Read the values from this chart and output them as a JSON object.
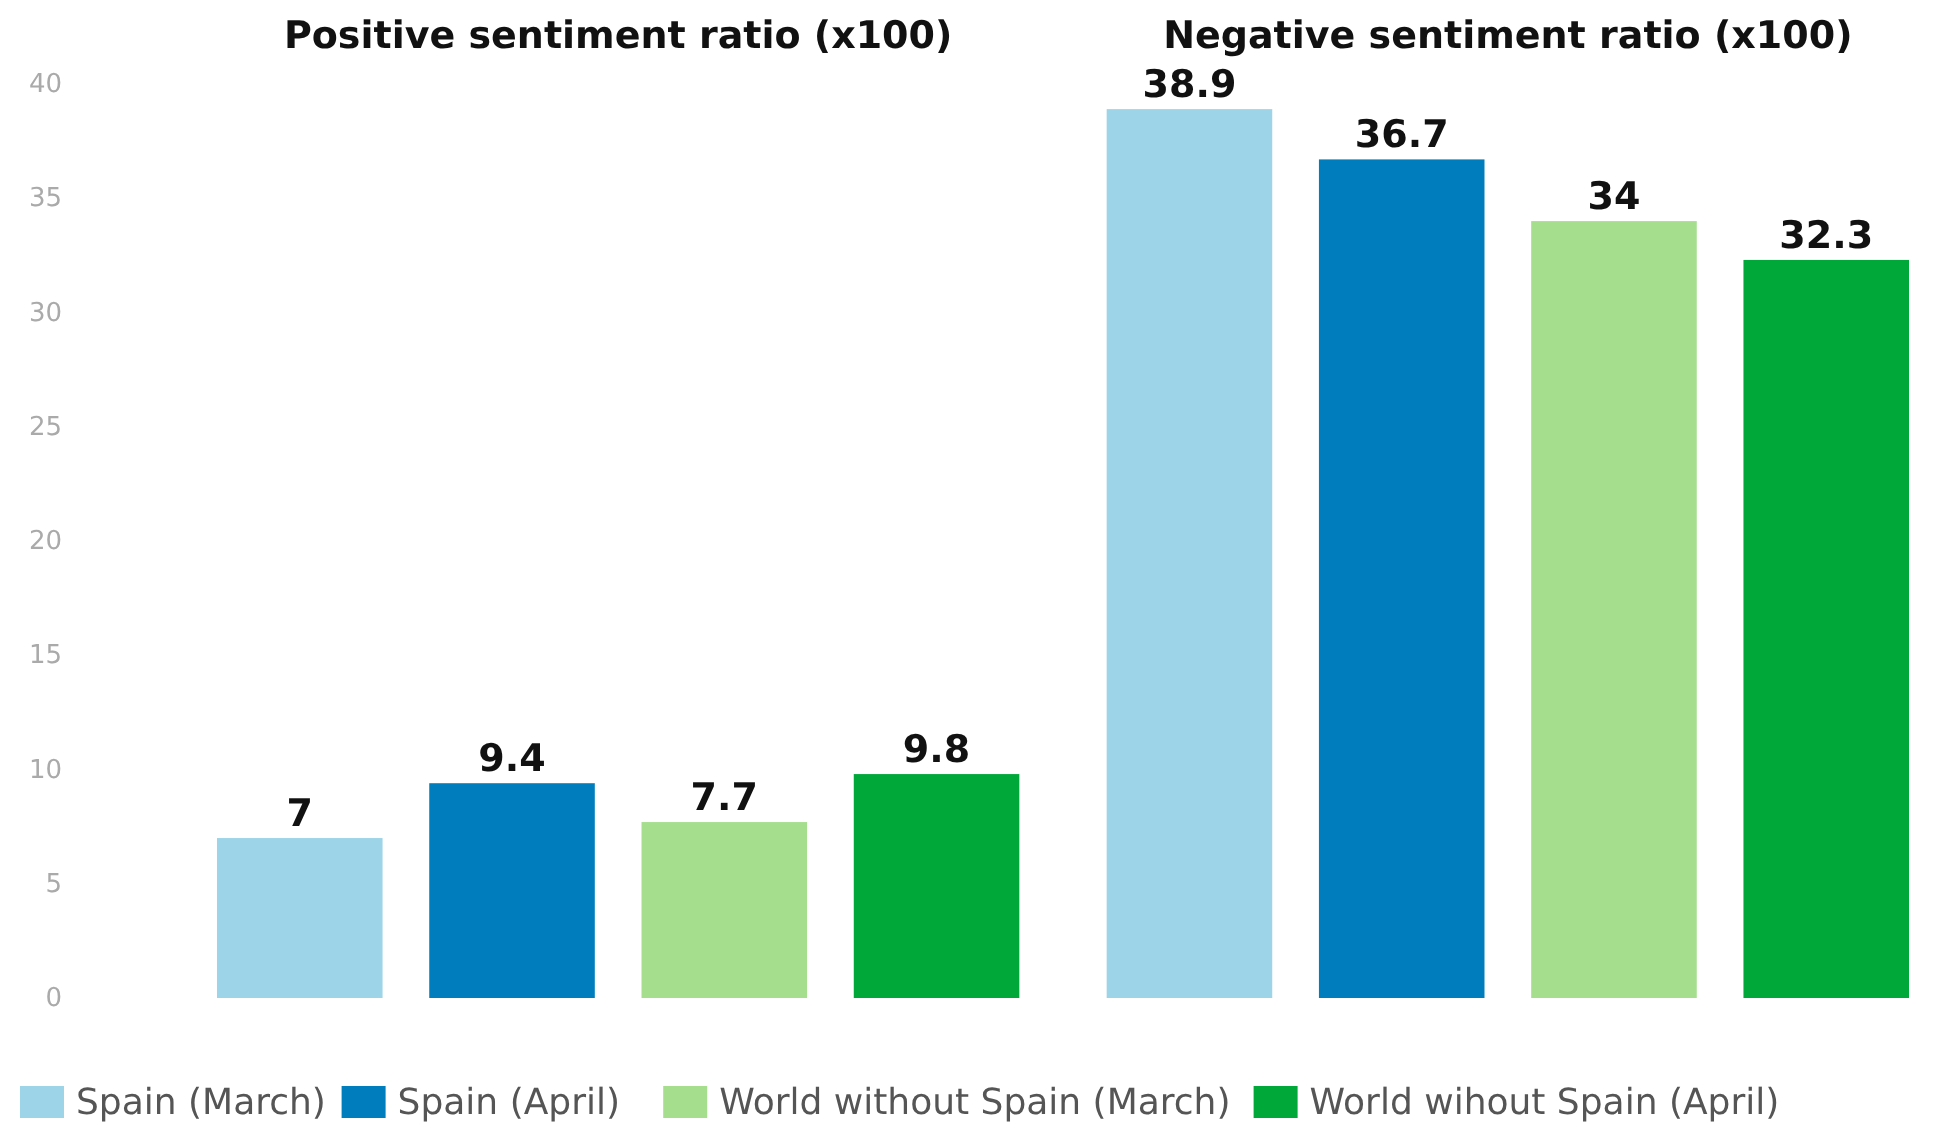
{
  "chart_data": {
    "type": "bar",
    "categories": [
      "Positive sentiment ratio (x100)",
      "Negative sentiment ratio (x100)"
    ],
    "series": [
      {
        "name": "Spain (March)",
        "color": "#9dd4e8",
        "values": [
          7,
          38.9
        ]
      },
      {
        "name": "Spain (April)",
        "color": "#007dbc",
        "values": [
          9.4,
          36.7
        ]
      },
      {
        "name": "World without Spain (March)",
        "color": "#a5df8e",
        "values": [
          7.7,
          34
        ]
      },
      {
        "name": "World wihout Spain (April)",
        "color": "#00a83a",
        "values": [
          9.8,
          32.3
        ]
      }
    ],
    "ylim": [
      0,
      40
    ],
    "yticks": [
      0,
      5,
      10,
      15,
      20,
      25,
      30,
      35,
      40
    ],
    "data_labels": true,
    "legend": "bottom",
    "grid": false
  }
}
